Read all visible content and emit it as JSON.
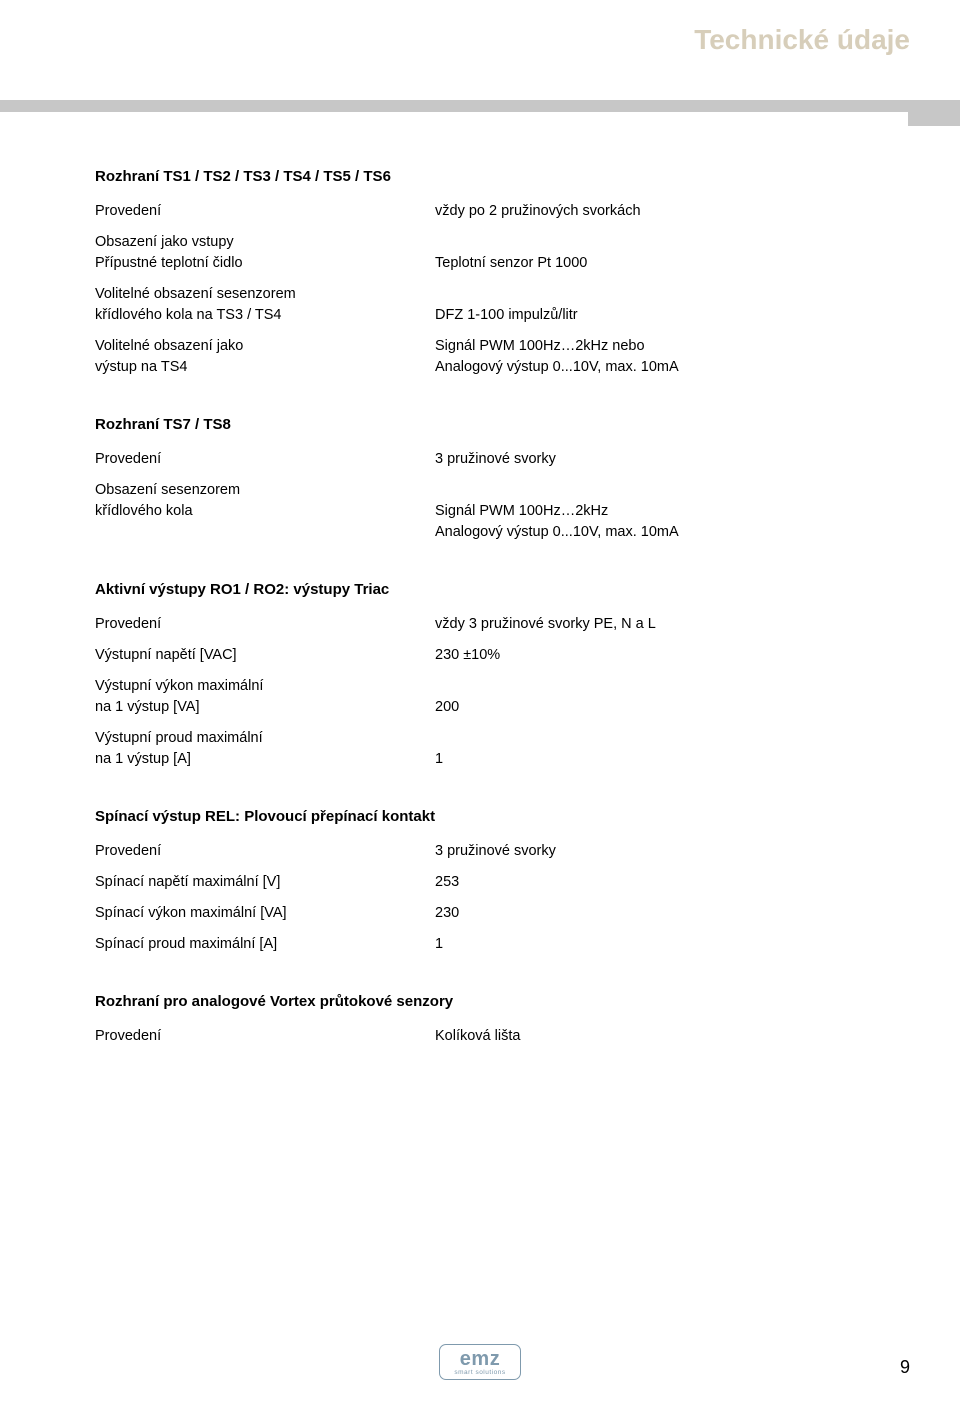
{
  "header": {
    "title": "Technické údaje",
    "title_color": "#d7ceba"
  },
  "section1": {
    "title": "Rozhraní TS1 / TS2 / TS3 / TS4 / TS5 / TS6",
    "rows": [
      {
        "label": "Provedení",
        "value": "vždy po 2 pružinových svorkách"
      },
      {
        "label": "Obsazení jako vstupy\nPřípustné teplotní čidlo",
        "value": "\nTeplotní senzor Pt 1000"
      },
      {
        "label": "Volitelné obsazení sesenzorem\nkřídlového kola na TS3 / TS4",
        "value": "\nDFZ 1-100 impulzů/litr"
      },
      {
        "label": "Volitelné obsazení jako\nvýstup na TS4",
        "value": "Signál PWM 100Hz…2kHz nebo\nAnalogový výstup 0...10V, max. 10mA"
      }
    ]
  },
  "section2": {
    "title": "Rozhraní  TS7 / TS8",
    "rows": [
      {
        "label": "Provedení",
        "value": "3 pružinové svorky"
      },
      {
        "label": "Obsazení sesenzorem\nkřídlového kola",
        "value": "\nSignál PWM 100Hz…2kHz\nAnalogový výstup 0...10V, max. 10mA"
      }
    ]
  },
  "section3": {
    "title": "Aktivní výstupy RO1 / RO2: výstupy Triac",
    "rows": [
      {
        "label": "Provedení",
        "value": "vždy 3 pružinové svorky PE, N a L"
      },
      {
        "label": "Výstupní napětí [VAC]",
        "value": "230 ±10%"
      },
      {
        "label": "Výstupní výkon maximální\nna 1 výstup [VA]",
        "value": "\n200"
      },
      {
        "label": "Výstupní proud maximální\nna 1 výstup [A]",
        "value": "\n1"
      }
    ]
  },
  "section4": {
    "title": "Spínací výstup REL: Plovoucí přepínací kontakt",
    "rows": [
      {
        "label": "Provedení",
        "value": "3 pružinové svorky"
      },
      {
        "label": "Spínací napětí maximální [V]",
        "value": "253"
      },
      {
        "label": "Spínací výkon maximální [VA]",
        "value": "230"
      },
      {
        "label": "Spínací proud maximální [A]",
        "value": "1"
      }
    ]
  },
  "section5": {
    "title": "Rozhraní pro analogové Vortex průtokové senzory",
    "rows": [
      {
        "label": "Provedení",
        "value": "Kolíková lišta"
      }
    ]
  },
  "footer": {
    "logo_text": "emz",
    "logo_sub": "smart solutions",
    "page_num": "9"
  }
}
